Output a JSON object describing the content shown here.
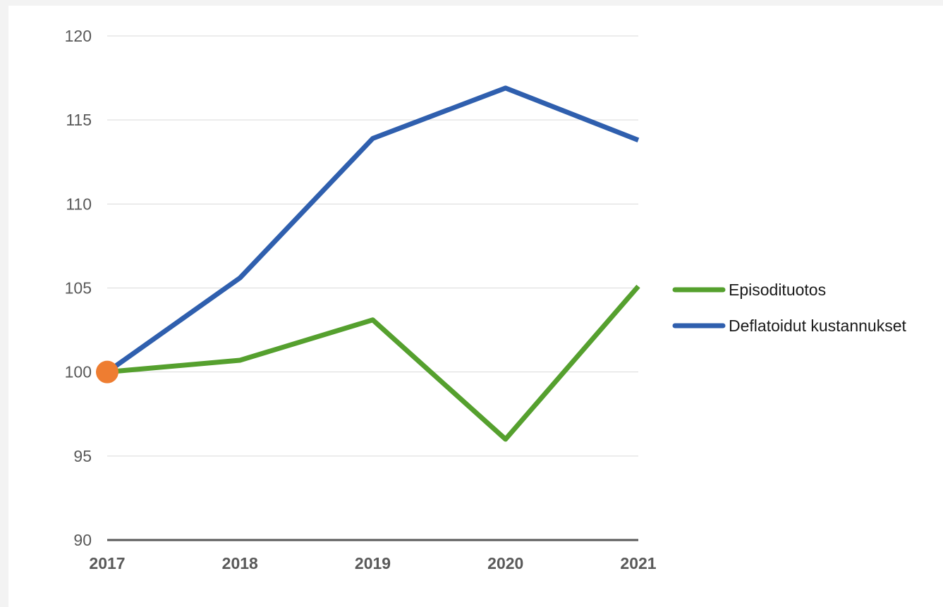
{
  "chart_data": {
    "type": "line",
    "title": "",
    "xlabel": "",
    "ylabel": "",
    "categories": [
      "2017",
      "2018",
      "2019",
      "2020",
      "2021"
    ],
    "ylim": [
      90,
      120
    ],
    "yticks": [
      90,
      95,
      100,
      105,
      110,
      115,
      120
    ],
    "grid": true,
    "legend_position": "right",
    "series": [
      {
        "name": "Episodituotos",
        "color": "#55a02e",
        "values": [
          100,
          100.7,
          103.1,
          96.0,
          105.1
        ]
      },
      {
        "name": "Deflatoidut kustannukset",
        "color": "#2f5fae",
        "values": [
          100,
          105.6,
          113.9,
          116.9,
          113.8
        ]
      }
    ],
    "marker": {
      "x": "2017",
      "y": 100,
      "color": "#ee7d31"
    },
    "colors": {
      "grid": "#d9d9d9",
      "axis": "#595959"
    }
  }
}
